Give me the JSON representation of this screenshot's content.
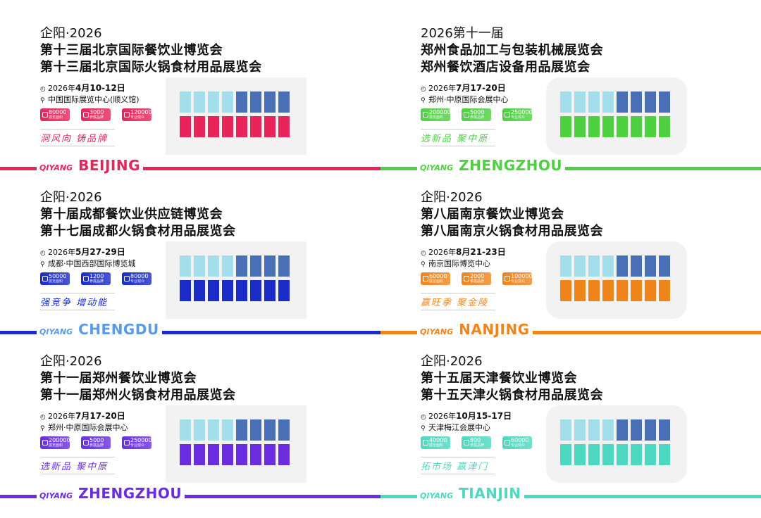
{
  "stat_labels": [
    "展览面积",
    "参展品牌",
    "专业观众"
  ],
  "brand": "QIYANG",
  "panels": [
    {
      "id": "beijing",
      "line1": "企阳·2026",
      "line2": "第十三届北京国际餐饮业博览会",
      "line3": "第十三届北京国际火锅食材用品展览会",
      "date_prefix": "2026年",
      "date_main": "4月10-12日",
      "venue": "中国国际展览中心(顺义馆)",
      "stats": [
        "80000",
        "3000",
        "120000"
      ],
      "slogan": "洞风向  铸品牌",
      "city": "BEIJING",
      "color": "#e8245a",
      "city_color": "#e8245a"
    },
    {
      "id": "zhengzhou-machinery",
      "line1": "2026第十一届",
      "line2": "郑州食品加工与包装机械展览会",
      "line3": "郑州餐饮酒店设备用品展览会",
      "date_prefix": "2026年",
      "date_main": "7月17-20日",
      "venue": "郑州·中原国际会展中心",
      "stats": [
        "200000",
        "5000",
        "250000"
      ],
      "slogan": "选新品  聚中原",
      "city": "ZHENGZHOU",
      "color": "#4fd041",
      "city_color": "#4fd041"
    },
    {
      "id": "chengdu",
      "line1": "企阳·2026",
      "line2": "第十届成都餐饮业供应链博览会",
      "line3": "第十七届成都火锅食材用品展览会",
      "date_prefix": "2026年",
      "date_main": "5月27-29日",
      "venue": "成都·中国西部国际博览城",
      "stats": [
        "50000",
        "1200",
        "80000"
      ],
      "slogan": "强竞争  增动能",
      "city": "CHENGDU",
      "color": "#1a2bc8",
      "city_color": "#5b9be6"
    },
    {
      "id": "nanjing",
      "line1": "企阳·2026",
      "line2": "第八届南京餐饮业博览会",
      "line3": "第八届南京火锅食材用品展览会",
      "date_prefix": "2026年",
      "date_main": "8月21-23日",
      "venue": "南京国际博览中心",
      "stats": [
        "60000",
        "2000",
        "100000"
      ],
      "slogan": "赢旺季  聚金陵",
      "city": "NANJING",
      "color": "#f0841c",
      "city_color": "#f0841c"
    },
    {
      "id": "zhengzhou",
      "line1": "企阳·2026",
      "line2": "第十一届郑州餐饮业博览会",
      "line3": "第十一届郑州火锅食材用品展览会",
      "date_prefix": "2026年",
      "date_main": "7月17-20日",
      "venue": "郑州·中原国际会展中心",
      "stats": [
        "200000",
        "5000",
        "250000"
      ],
      "slogan": "选新品  聚中原",
      "city": "ZHENGZHOU",
      "color": "#6a2ee0",
      "city_color": "#6a2ee0"
    },
    {
      "id": "tianjin",
      "line1": "企阳·2026",
      "line2": "第十五届天津餐饮业博览会",
      "line3": "第十五天津火锅食材用品展览会",
      "date_prefix": "2026年",
      "date_main": "10月15-17日",
      "venue": "天津梅江会展中心",
      "stats": [
        "40000",
        "800",
        "60000"
      ],
      "slogan": "拓市场  赢津门",
      "city": "TIANJIN",
      "color": "#4ed8bf",
      "city_color": "#4ed8bf"
    }
  ]
}
